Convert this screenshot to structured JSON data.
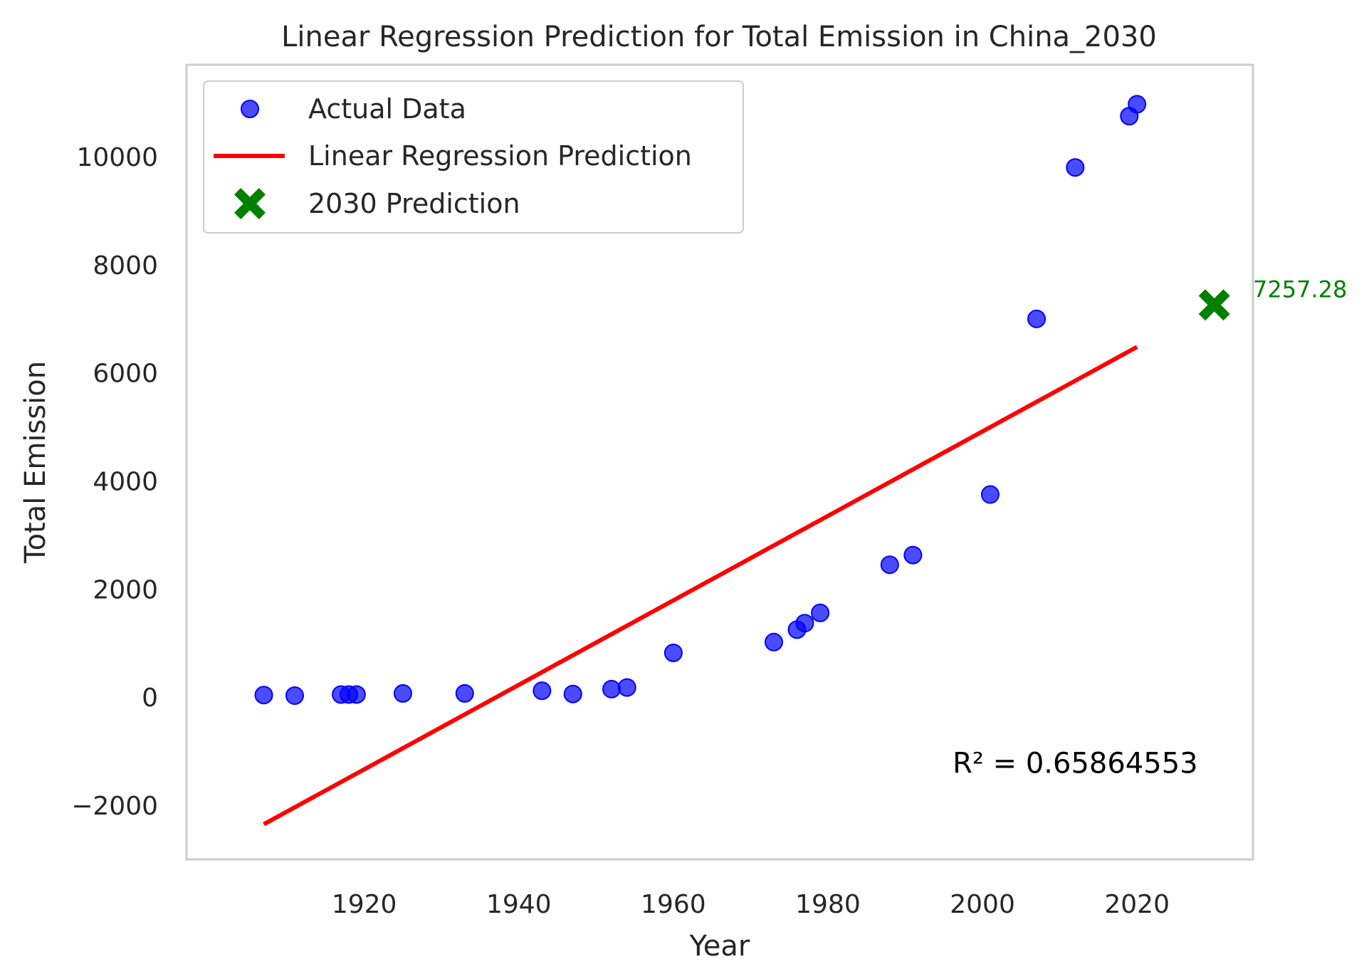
{
  "chart_data": {
    "type": "scatter",
    "title": "Linear Regression Prediction for Total Emission in China_2030",
    "xlabel": "Year",
    "ylabel": "Total Emission",
    "xlim": [
      1897,
      2035
    ],
    "ylim": [
      -3000,
      11700
    ],
    "x_ticks": [
      1920,
      1940,
      1960,
      1980,
      2000,
      2020
    ],
    "y_ticks": [
      -2000,
      0,
      2000,
      4000,
      6000,
      8000,
      10000
    ],
    "grid": false,
    "legend_position": "upper-left",
    "series": [
      {
        "name": "Actual Data",
        "kind": "scatter",
        "color": "#0000ff",
        "points": [
          {
            "x": 1907,
            "y": 40
          },
          {
            "x": 1911,
            "y": 30
          },
          {
            "x": 1917,
            "y": 50
          },
          {
            "x": 1918,
            "y": 50
          },
          {
            "x": 1919,
            "y": 50
          },
          {
            "x": 1925,
            "y": 70
          },
          {
            "x": 1933,
            "y": 70
          },
          {
            "x": 1943,
            "y": 120
          },
          {
            "x": 1947,
            "y": 60
          },
          {
            "x": 1952,
            "y": 150
          },
          {
            "x": 1954,
            "y": 180
          },
          {
            "x": 1960,
            "y": 820
          },
          {
            "x": 1973,
            "y": 1020
          },
          {
            "x": 1976,
            "y": 1250
          },
          {
            "x": 1977,
            "y": 1370
          },
          {
            "x": 1979,
            "y": 1560
          },
          {
            "x": 1988,
            "y": 2450
          },
          {
            "x": 1991,
            "y": 2630
          },
          {
            "x": 2001,
            "y": 3750
          },
          {
            "x": 2007,
            "y": 7000
          },
          {
            "x": 2012,
            "y": 9800
          },
          {
            "x": 2019,
            "y": 10750
          },
          {
            "x": 2020,
            "y": 10970
          }
        ]
      },
      {
        "name": "Linear Regression Prediction",
        "kind": "line",
        "color": "#ff0000",
        "points": [
          {
            "x": 1907,
            "y": -2350
          },
          {
            "x": 2020,
            "y": 6480
          }
        ]
      },
      {
        "name": "2030 Prediction",
        "kind": "marker",
        "color": "#008000",
        "points": [
          {
            "x": 2030,
            "y": 7257.28
          }
        ]
      }
    ],
    "annotations": [
      {
        "text": "7257.28",
        "x": 2035,
        "y": 7400,
        "color": "#008000"
      },
      {
        "text": "R² = 0.65864553",
        "x": 2012,
        "y": -1400,
        "color": "#000000"
      }
    ]
  }
}
